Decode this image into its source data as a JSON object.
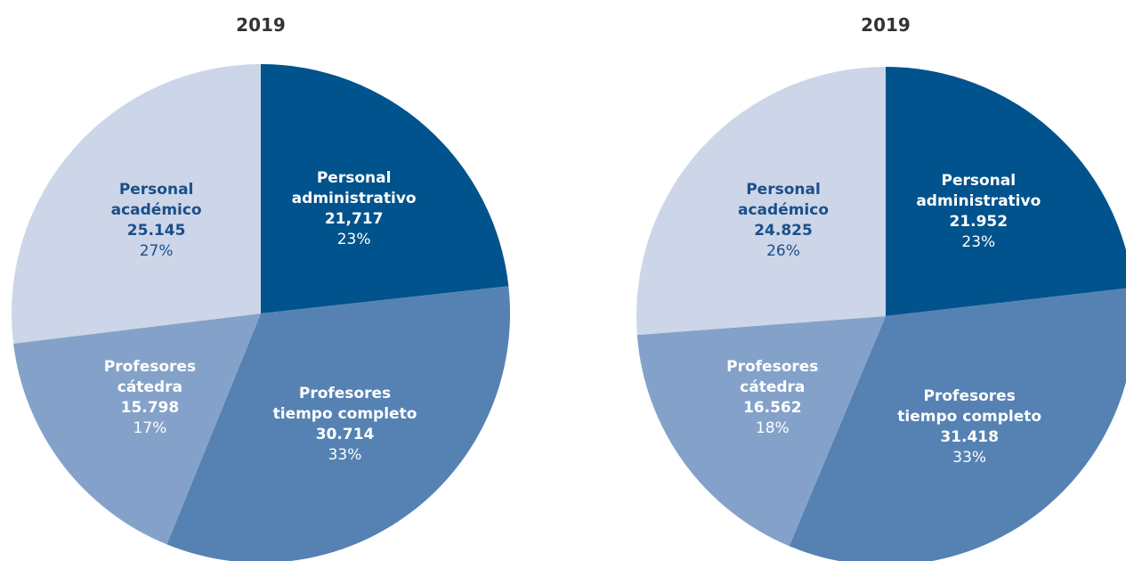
{
  "chart_data": [
    {
      "type": "pie",
      "title": "2019",
      "categories": [
        "Personal\nadministrativo",
        "Profesores\ntiempo completo",
        "Profesores\ncátedra",
        "Personal\nacadémico"
      ],
      "values": [
        21717,
        30714,
        15798,
        25145
      ],
      "value_labels": [
        "21,717",
        "30.714",
        "15.798",
        "25.145"
      ],
      "percentages": [
        23,
        33,
        17,
        27
      ],
      "percentage_labels": [
        "23%",
        "33%",
        "17%",
        "27%"
      ],
      "colors": [
        "#00538c",
        "#5582b3",
        "#84a2c9",
        "#ccd6e8"
      ]
    },
    {
      "type": "pie",
      "title": "2019",
      "categories": [
        "Personal\nadministrativo",
        "Profesores\ntiempo completo",
        "Profesores\ncátedra",
        "Personal\nacadémico"
      ],
      "values": [
        21952,
        31418,
        16562,
        24825
      ],
      "value_labels": [
        "21.952",
        "31.418",
        "16.562",
        "24.825"
      ],
      "percentages": [
        23,
        33,
        18,
        26
      ],
      "percentage_labels": [
        "23%",
        "33%",
        "18%",
        "26%"
      ],
      "colors": [
        "#00538c",
        "#5582b3",
        "#84a2c9",
        "#ccd6e8"
      ]
    }
  ]
}
